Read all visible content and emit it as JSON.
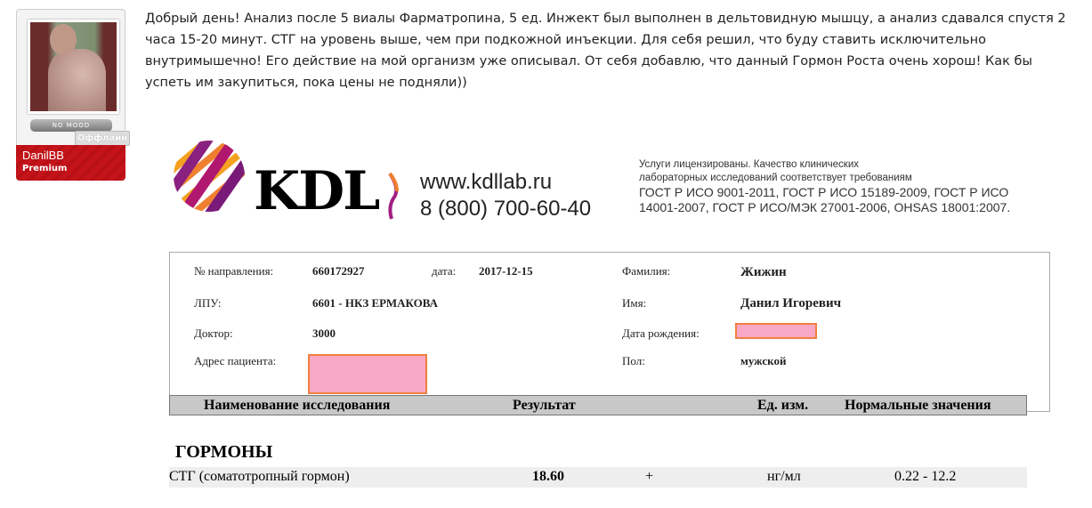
{
  "user": {
    "name": "DanilBB",
    "rank": "Premium",
    "mood": "NO MOOD",
    "status": "Оффлайн"
  },
  "post": {
    "text": "Добрый день! Анализ после 5 виалы Фарматропина, 5 ед. Инжект был выполнен в дельтовидную мышцу, а анализ сдавался спустя 2 часа 15-20 минут. СТГ на уровень выше, чем при подкожной инъекции. Для себя решил, что буду ставить исключительно внутримышечно! Его действие на мой организм уже описывал. От себя добавлю, что данный Гормон Роста очень хорош! Как бы успеть им закупиться, пока цены не подняли))"
  },
  "lab": {
    "logo": "KDL",
    "website": "www.kdllab.ru",
    "phone": "8 (800) 700-60-40",
    "license": [
      "Услуги лицензированы. Качество клинических",
      "лабораторных исследований соответствует требованиям",
      "ГОСТ Р ИСО 9001-2011, ГОСТ Р ИСО 15189-2009, ГОСТ Р ИСО",
      "14001-2007, ГОСТ Р ИСО/МЭК 27001-2006, OHSAS 18001:2007."
    ],
    "form": {
      "ref_label": "№ направления:",
      "ref": "660172927",
      "date_label": "дата:",
      "date": "2017-12-15",
      "lpu_label": "ЛПУ:",
      "lpu": "6601 - НКЗ ЕРМАКОВА",
      "doctor_label": "Доктор:",
      "doctor": "3000",
      "address_label": "Адрес пациента:",
      "surname_label": "Фамилия:",
      "surname": "Жижин",
      "name_label": "Имя:",
      "name": "Данил Игоревич",
      "dob_label": "Дата рождения:",
      "sex_label": "Пол:",
      "sex": "мужской"
    },
    "table": {
      "headers": [
        "Наименование исследования",
        "Результат",
        "Ед. изм.",
        "Нормальные значения"
      ],
      "section": "ГОРМОНЫ",
      "rows": [
        {
          "name": "СТГ (соматотропный гормон)",
          "result": "18.60",
          "flag": "+",
          "unit": "нг/мл",
          "norm": "0.22 - 12.2"
        }
      ]
    }
  }
}
